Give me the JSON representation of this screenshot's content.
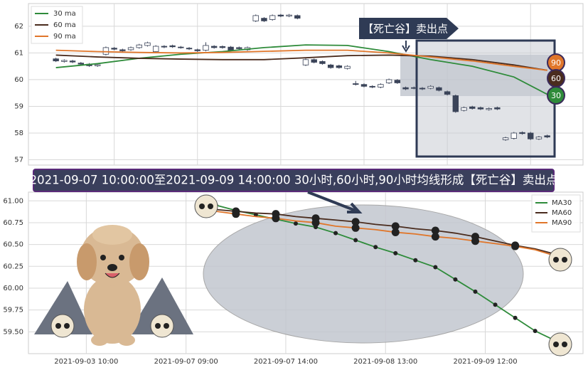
{
  "chart_data": [
    {
      "type": "candlestick",
      "open": [
        60.78,
        60.68,
        60.7,
        60.62,
        60.58,
        60.52,
        60.95,
        61.18,
        61.12,
        61.12,
        61.2,
        61.28,
        61.05,
        61.25,
        61.27,
        61.22,
        61.18,
        61.12,
        61.1,
        61.25,
        61.24,
        61.22,
        61.2,
        61.12,
        62.2,
        62.3,
        62.25,
        62.42,
        62.38,
        62.4,
        60.55,
        60.75,
        60.68,
        60.55,
        60.52,
        60.42,
        59.85,
        59.82,
        59.75,
        59.72,
        59.88,
        59.98,
        59.7,
        59.7,
        59.68,
        59.68,
        59.7,
        59.55,
        59.4,
        58.85,
        58.98,
        58.95,
        58.88,
        58.95,
        57.75,
        57.8,
        58.02,
        58.0,
        57.78,
        57.9
      ],
      "high": [
        60.82,
        60.76,
        60.74,
        60.66,
        60.62,
        60.6,
        61.24,
        61.22,
        61.16,
        61.24,
        61.34,
        61.42,
        61.29,
        61.29,
        61.31,
        61.26,
        61.22,
        61.16,
        61.4,
        61.29,
        61.28,
        61.26,
        61.24,
        61.24,
        62.44,
        62.34,
        62.44,
        62.46,
        62.46,
        62.44,
        60.79,
        60.79,
        60.72,
        60.59,
        60.56,
        60.54,
        59.95,
        59.86,
        59.79,
        59.86,
        60.04,
        60.02,
        59.74,
        59.74,
        59.72,
        59.79,
        59.74,
        59.59,
        59.44,
        58.99,
        59.02,
        58.99,
        58.96,
        58.99,
        57.86,
        58.04,
        58.06,
        58.04,
        57.89,
        57.94
      ],
      "low": [
        60.66,
        60.64,
        60.62,
        60.54,
        60.48,
        60.48,
        60.91,
        61.1,
        61.04,
        61.08,
        61.16,
        61.24,
        61.01,
        61.18,
        61.19,
        61.16,
        61.11,
        61.04,
        61.06,
        61.16,
        61.16,
        61.06,
        61.12,
        61.08,
        62.16,
        62.16,
        62.21,
        62.34,
        62.34,
        62.26,
        60.51,
        60.61,
        60.56,
        60.41,
        60.41,
        60.38,
        59.78,
        59.71,
        59.68,
        59.68,
        59.84,
        59.84,
        59.61,
        59.64,
        59.61,
        59.64,
        59.56,
        59.41,
        58.76,
        58.81,
        58.88,
        58.86,
        58.84,
        58.86,
        57.71,
        57.76,
        57.94,
        57.74,
        57.74,
        57.81
      ],
      "close": [
        60.7,
        60.72,
        60.66,
        60.58,
        60.52,
        60.56,
        61.2,
        61.14,
        61.08,
        61.2,
        61.3,
        61.38,
        61.25,
        61.22,
        61.23,
        61.2,
        61.15,
        61.08,
        61.28,
        61.2,
        61.2,
        61.1,
        61.16,
        61.2,
        62.4,
        62.2,
        62.4,
        62.38,
        62.42,
        62.3,
        60.75,
        60.65,
        60.6,
        60.45,
        60.45,
        60.5,
        59.82,
        59.75,
        59.72,
        59.82,
        60.0,
        59.88,
        59.65,
        59.68,
        59.65,
        59.75,
        59.6,
        59.45,
        58.8,
        58.95,
        58.92,
        58.9,
        58.92,
        58.9,
        57.82,
        58.0,
        57.98,
        57.78,
        57.85,
        57.85
      ],
      "up_color": "#ffffff",
      "down_color": "#3b4459",
      "series": [
        {
          "name": "30 ma",
          "color": "#2e8b3a",
          "x": [
            0,
            5,
            10,
            15,
            20,
            25,
            30,
            35,
            40,
            45,
            50,
            55,
            59
          ],
          "values": [
            60.45,
            60.6,
            60.8,
            60.95,
            61.05,
            61.2,
            61.3,
            61.28,
            61.05,
            60.75,
            60.5,
            60.1,
            59.45
          ]
        },
        {
          "name": "60 ma",
          "color": "#4a2c1e",
          "x": [
            0,
            5,
            10,
            15,
            20,
            25,
            30,
            35,
            40,
            45,
            50,
            55,
            59
          ],
          "values": [
            60.92,
            60.85,
            60.8,
            60.77,
            60.75,
            60.75,
            60.82,
            60.9,
            60.92,
            60.88,
            60.75,
            60.55,
            60.35
          ]
        },
        {
          "name": "90 ma",
          "color": "#e0762a",
          "x": [
            0,
            5,
            10,
            15,
            20,
            25,
            30,
            35,
            40,
            45,
            50,
            55,
            59
          ],
          "values": [
            61.1,
            61.05,
            61.02,
            61.0,
            61.02,
            61.06,
            61.1,
            61.1,
            61.0,
            60.85,
            60.7,
            60.5,
            60.35
          ]
        }
      ],
      "xlim": [
        -3.3,
        63.3
      ],
      "xticks": [
        7,
        17,
        27,
        37,
        47,
        57
      ],
      "ylim": [
        56.8,
        62.85
      ],
      "yticks": [
        57,
        58,
        59,
        60,
        61,
        62
      ],
      "grid": true,
      "legend": "upper left",
      "annotation": "【死亡谷】卖出点",
      "end_labels": [
        "90",
        "60",
        "30"
      ]
    },
    {
      "type": "line",
      "title": "2021-09-07 10:00:00至2021-09-09 14:00:00 30小时,60小时,90小时均线形成【死亡谷】卖出点",
      "x": [
        0,
        1,
        2,
        3,
        4,
        5,
        6,
        7,
        8,
        9,
        10,
        11,
        12,
        13,
        14,
        15,
        16,
        17
      ],
      "series": [
        {
          "name": "MA30",
          "color": "#2e8b3a",
          "values": [
            60.95,
            60.89,
            60.84,
            60.79,
            60.74,
            60.7,
            60.63,
            60.55,
            60.47,
            60.4,
            60.32,
            60.24,
            60.1,
            59.96,
            59.81,
            59.66,
            59.51,
            59.4
          ]
        },
        {
          "name": "MA60",
          "color": "#4a2c1e",
          "values": [
            60.9,
            60.88,
            60.86,
            60.85,
            60.82,
            60.8,
            60.78,
            60.76,
            60.73,
            60.71,
            60.68,
            60.66,
            60.63,
            60.59,
            60.54,
            60.49,
            60.45,
            60.39
          ]
        },
        {
          "name": "MA90",
          "color": "#e0762a",
          "values": [
            60.88,
            60.85,
            60.82,
            60.8,
            60.77,
            60.75,
            60.71,
            60.69,
            60.67,
            60.64,
            60.62,
            60.59,
            60.57,
            60.54,
            60.51,
            60.48,
            60.44,
            60.37
          ]
        }
      ],
      "xlim": [
        -9.4,
        18.4
      ],
      "xticks": [
        {
          "value": -6.5,
          "label": "2021-09-03 10:00"
        },
        {
          "value": -1.5,
          "label": "2021-09-07 09:00"
        },
        {
          "value": 3.5,
          "label": "2021-09-07 14:00"
        },
        {
          "value": 8.5,
          "label": "2021-09-08 13:00"
        },
        {
          "value": 13.5,
          "label": "2021-09-09 12:00"
        }
      ],
      "ylim": [
        59.25,
        61.1
      ],
      "yticks": [
        {
          "value": 59.5,
          "label": "59.50"
        },
        59.75,
        {
          "value": 60,
          "label": "60.00"
        },
        60.25,
        {
          "value": 60.5,
          "label": "60.50"
        },
        60.75,
        {
          "value": 61,
          "label": "61.00"
        }
      ],
      "grid": true,
      "legend": "upper right"
    }
  ]
}
